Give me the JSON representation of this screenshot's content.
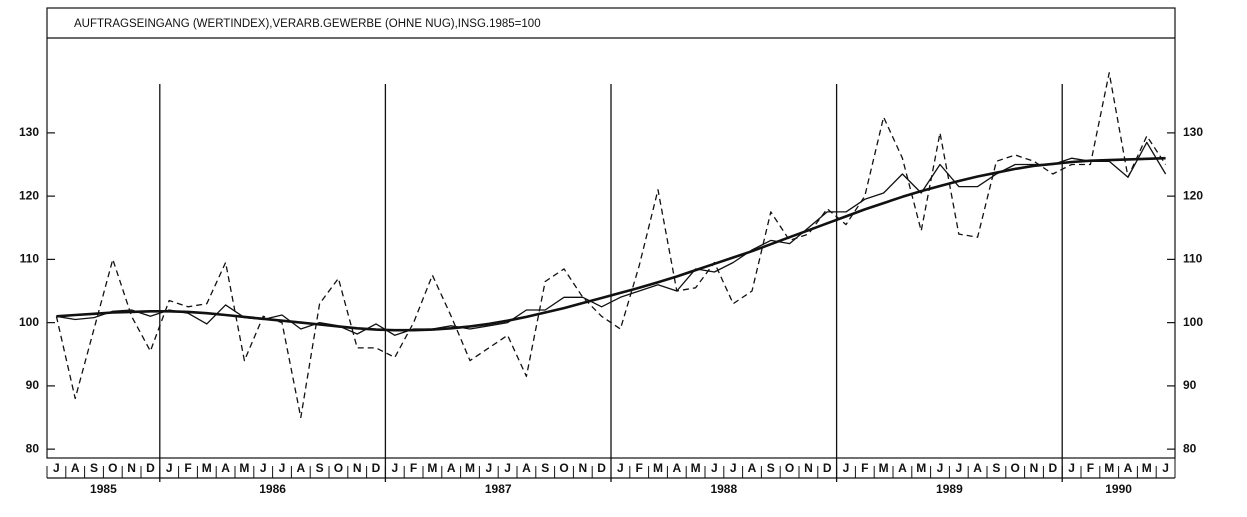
{
  "chart_data": {
    "type": "line",
    "title": "AUFTRAGSEINGANG (WERTINDEX),VERARB.GEWERBE (OHNE NUG),INSG.1985=100",
    "categories": [
      "J",
      "A",
      "S",
      "O",
      "N",
      "D",
      "J",
      "F",
      "M",
      "A",
      "M",
      "J",
      "J",
      "A",
      "S",
      "O",
      "N",
      "D",
      "J",
      "F",
      "M",
      "A",
      "M",
      "J",
      "J",
      "A",
      "S",
      "O",
      "N",
      "D",
      "J",
      "F",
      "M",
      "A",
      "M",
      "J",
      "J",
      "A",
      "S",
      "O",
      "N",
      "D",
      "J",
      "F",
      "M",
      "A",
      "M",
      "J",
      "J",
      "A",
      "S",
      "O",
      "N",
      "D",
      "J",
      "F",
      "M",
      "A",
      "M",
      "J"
    ],
    "years": [
      "1985",
      "1986",
      "1987",
      "1988",
      "1989",
      "1990"
    ],
    "series": [
      {
        "color": "#111111",
        "style": "dashed",
        "weight": "thin",
        "values": [
          101,
          88,
          99,
          110,
          101,
          95.5,
          103.5,
          102.5,
          103,
          109.5,
          94,
          101,
          100,
          85,
          103,
          107,
          96,
          96,
          94.5,
          100,
          107.5,
          101,
          94,
          96,
          98,
          91.5,
          106.5,
          108.5,
          104,
          101,
          99,
          109,
          121,
          105,
          105.5,
          109.5,
          103,
          105,
          117.5,
          113,
          114,
          118,
          115.5,
          120,
          132.5,
          126,
          114.5,
          130,
          114,
          113.5,
          125.5,
          126.5,
          125.5,
          123.5,
          125,
          125,
          139.5,
          123,
          129.5,
          125
        ]
      },
      {
        "color": "#111111",
        "style": "solid",
        "weight": "thin",
        "values": [
          101,
          100.5,
          100.8,
          101.8,
          102,
          101,
          102,
          101.5,
          99.8,
          102.8,
          100.8,
          100.5,
          101.2,
          99,
          100,
          99.5,
          98.2,
          99.8,
          98,
          99,
          99,
          99.5,
          99,
          99.5,
          100,
          102,
          102,
          104,
          104,
          102.5,
          104,
          105,
          106,
          105,
          108.5,
          108,
          109.5,
          111.5,
          113,
          112.5,
          115,
          117.5,
          117.5,
          119.5,
          120.5,
          123.5,
          120.5,
          125,
          121.5,
          121.5,
          123.5,
          125,
          125,
          125,
          126,
          125.5,
          125.5,
          123,
          128.5,
          123.5
        ]
      },
      {
        "color": "#111111",
        "style": "solid",
        "weight": "thick",
        "values": [
          101,
          101.2,
          101.4,
          101.6,
          101.7,
          101.8,
          101.8,
          101.7,
          101.5,
          101.2,
          100.9,
          100.6,
          100.3,
          100,
          99.7,
          99.4,
          99.1,
          98.9,
          98.8,
          98.8,
          98.9,
          99.1,
          99.4,
          99.8,
          100.3,
          100.9,
          101.6,
          102.3,
          103.1,
          103.9,
          104.7,
          105.5,
          106.4,
          107.3,
          108.3,
          109.3,
          110.3,
          111.3,
          112.4,
          113.5,
          114.6,
          115.7,
          116.8,
          117.9,
          118.9,
          119.9,
          120.8,
          121.6,
          122.4,
          123.1,
          123.7,
          124.3,
          124.8,
          125.1,
          125.4,
          125.6,
          125.7,
          125.8,
          125.9,
          126
        ]
      }
    ],
    "ylim": [
      78.6,
      145
    ],
    "yticks": [
      80,
      90,
      100,
      110,
      120,
      130
    ]
  }
}
